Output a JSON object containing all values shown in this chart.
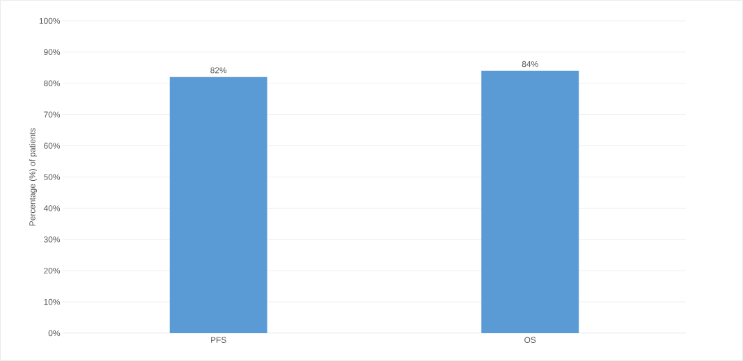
{
  "chart_data": {
    "type": "bar",
    "ylabel": "Percentage (%) of patients",
    "categories": [
      "PFS",
      "OS"
    ],
    "values": [
      82,
      84
    ],
    "value_labels": [
      "82%",
      "84%"
    ],
    "color": "#5b9bd5",
    "ylim": [
      0,
      100
    ],
    "yticks": [
      {
        "value": 0,
        "label": "0%"
      },
      {
        "value": 10,
        "label": "10%"
      },
      {
        "value": 20,
        "label": "20%"
      },
      {
        "value": 30,
        "label": "30%"
      },
      {
        "value": 40,
        "label": "40%"
      },
      {
        "value": 50,
        "label": "50%"
      },
      {
        "value": 60,
        "label": "60%"
      },
      {
        "value": 70,
        "label": "70%"
      },
      {
        "value": 80,
        "label": "80%"
      },
      {
        "value": 90,
        "label": "90%"
      },
      {
        "value": 100,
        "label": "100%"
      }
    ],
    "grid": "y"
  }
}
